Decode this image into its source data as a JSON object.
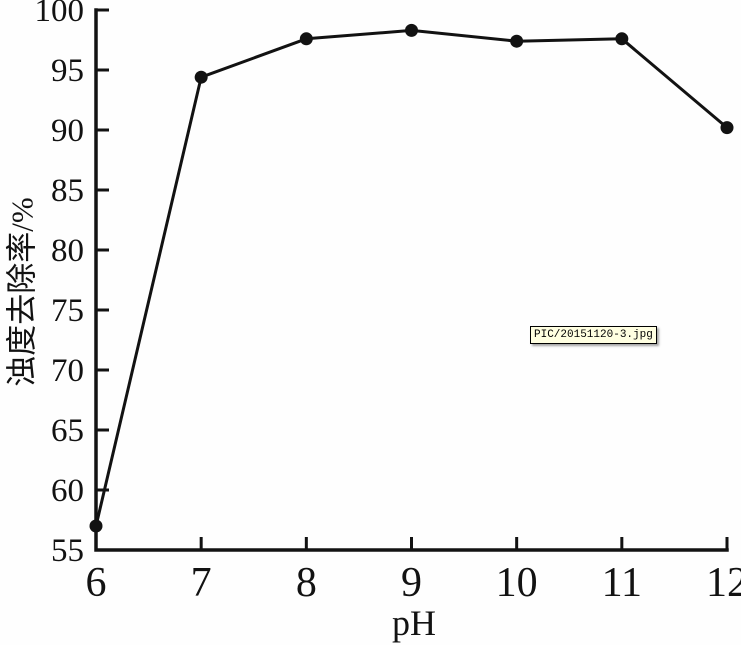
{
  "chart_data": {
    "type": "line",
    "x": [
      6,
      7,
      8,
      9,
      10,
      11,
      12
    ],
    "series": [
      {
        "name": "浊度去除率",
        "values": [
          57.0,
          94.4,
          97.6,
          98.3,
          97.4,
          97.6,
          90.2
        ]
      }
    ],
    "title": "",
    "xlabel": "pH",
    "ylabel": "浊度去除率/%",
    "xlim": [
      6,
      12
    ],
    "ylim": [
      55,
      100
    ],
    "x_ticks": [
      6,
      7,
      8,
      9,
      10,
      11,
      12
    ],
    "y_ticks": [
      55,
      60,
      65,
      70,
      75,
      80,
      85,
      90,
      95,
      100
    ],
    "grid": false,
    "legend_position": "none",
    "line_color": "#121212",
    "marker": "filled-circle",
    "marker_color": "#121212"
  },
  "tooltip": {
    "text": "PIC/20151120-3.jpg",
    "bg_color": "#ffffe1",
    "border_color": "#000000"
  }
}
